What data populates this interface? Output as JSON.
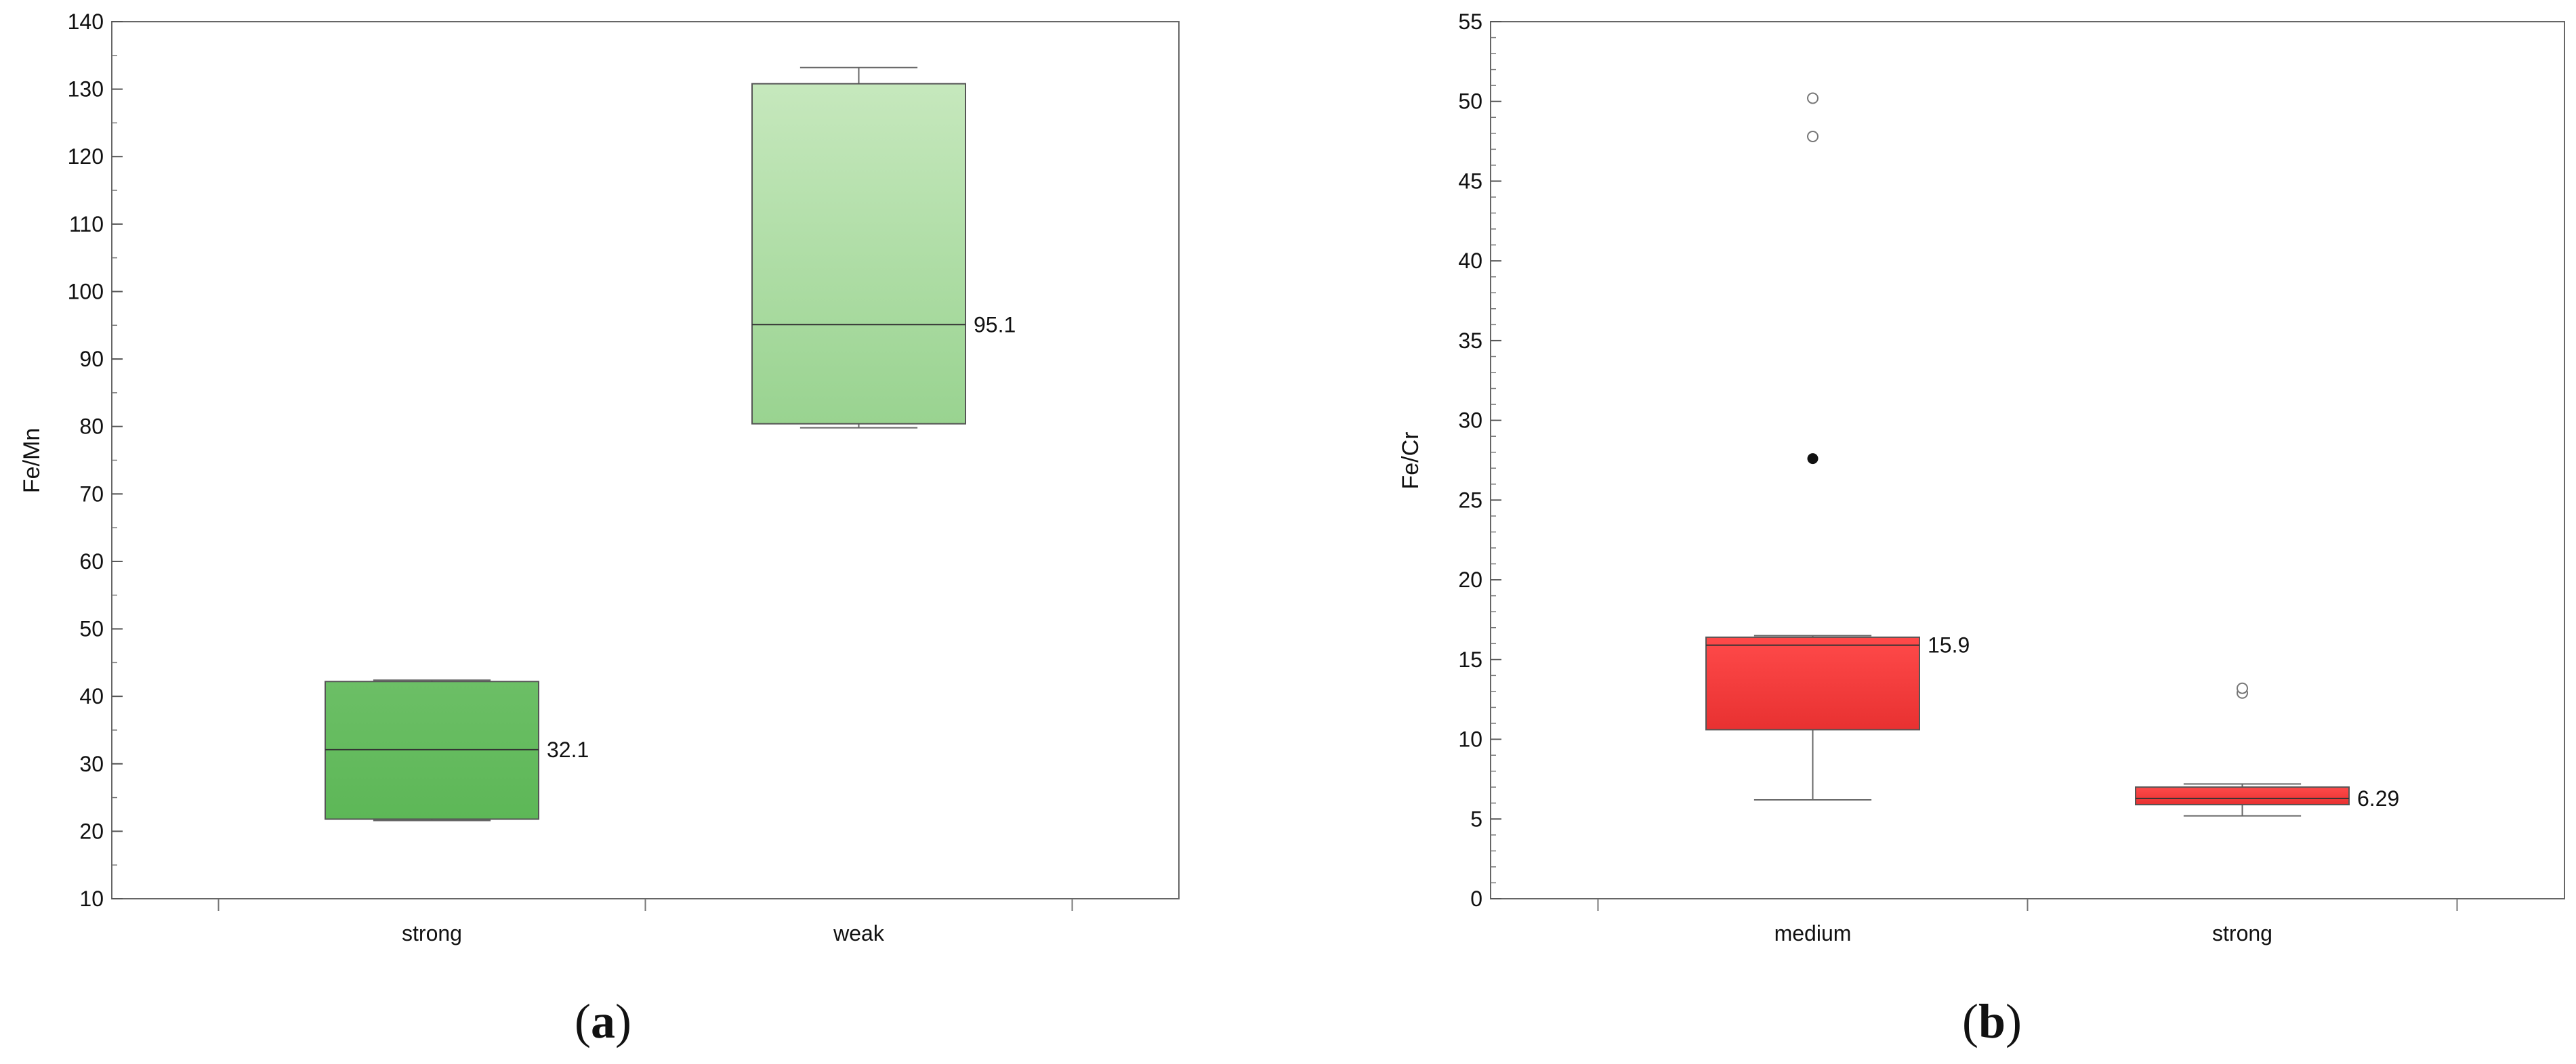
{
  "chart_data": [
    {
      "type": "box",
      "panel_label": "(a)",
      "panel_letter": "a",
      "title": "",
      "xlabel": "",
      "ylabel": "Fe/Mn",
      "ylim": [
        10,
        140
      ],
      "y_ticks": [
        10,
        20,
        30,
        40,
        50,
        60,
        70,
        80,
        90,
        100,
        110,
        120,
        130,
        140
      ],
      "y_minor_step": 5,
      "grid": false,
      "categories": [
        "strong",
        "weak"
      ],
      "boxes": [
        {
          "category": "strong",
          "min": 21.6,
          "q1": 21.8,
          "median": 32.1,
          "q3": 42.2,
          "max": 42.4,
          "median_label": "32.1",
          "color": "#5db757",
          "color_top": "#6cbf66",
          "outliers": [],
          "extremes": []
        },
        {
          "category": "weak",
          "min": 79.8,
          "q1": 80.4,
          "median": 95.1,
          "q3": 130.8,
          "max": 133.2,
          "median_label": "95.1",
          "color": "#99d390",
          "color_top": "#c6e8bd",
          "outliers": [],
          "extremes": []
        }
      ]
    },
    {
      "type": "box",
      "panel_label": "(b)",
      "panel_letter": "b",
      "title": "",
      "xlabel": "",
      "ylabel": "Fe/Cr",
      "ylim": [
        0,
        55
      ],
      "y_ticks": [
        0,
        5,
        10,
        15,
        20,
        25,
        30,
        35,
        40,
        45,
        50,
        55
      ],
      "y_minor_step": 1,
      "grid": false,
      "categories": [
        "medium",
        "strong"
      ],
      "boxes": [
        {
          "category": "medium",
          "min": 6.2,
          "q1": 10.6,
          "median": 15.9,
          "q3": 16.4,
          "max": 16.5,
          "median_label": "15.9",
          "color": "#e83131",
          "color_top": "#ff4a4a",
          "outliers": [
            47.8,
            50.2
          ],
          "extremes": [
            27.6
          ]
        },
        {
          "category": "strong",
          "min": 5.2,
          "q1": 5.9,
          "median": 6.29,
          "q3": 7.0,
          "max": 7.2,
          "median_label": "6.29",
          "color": "#e83131",
          "color_top": "#ff4a4a",
          "outliers": [
            12.9,
            13.2
          ],
          "extremes": []
        }
      ]
    }
  ]
}
